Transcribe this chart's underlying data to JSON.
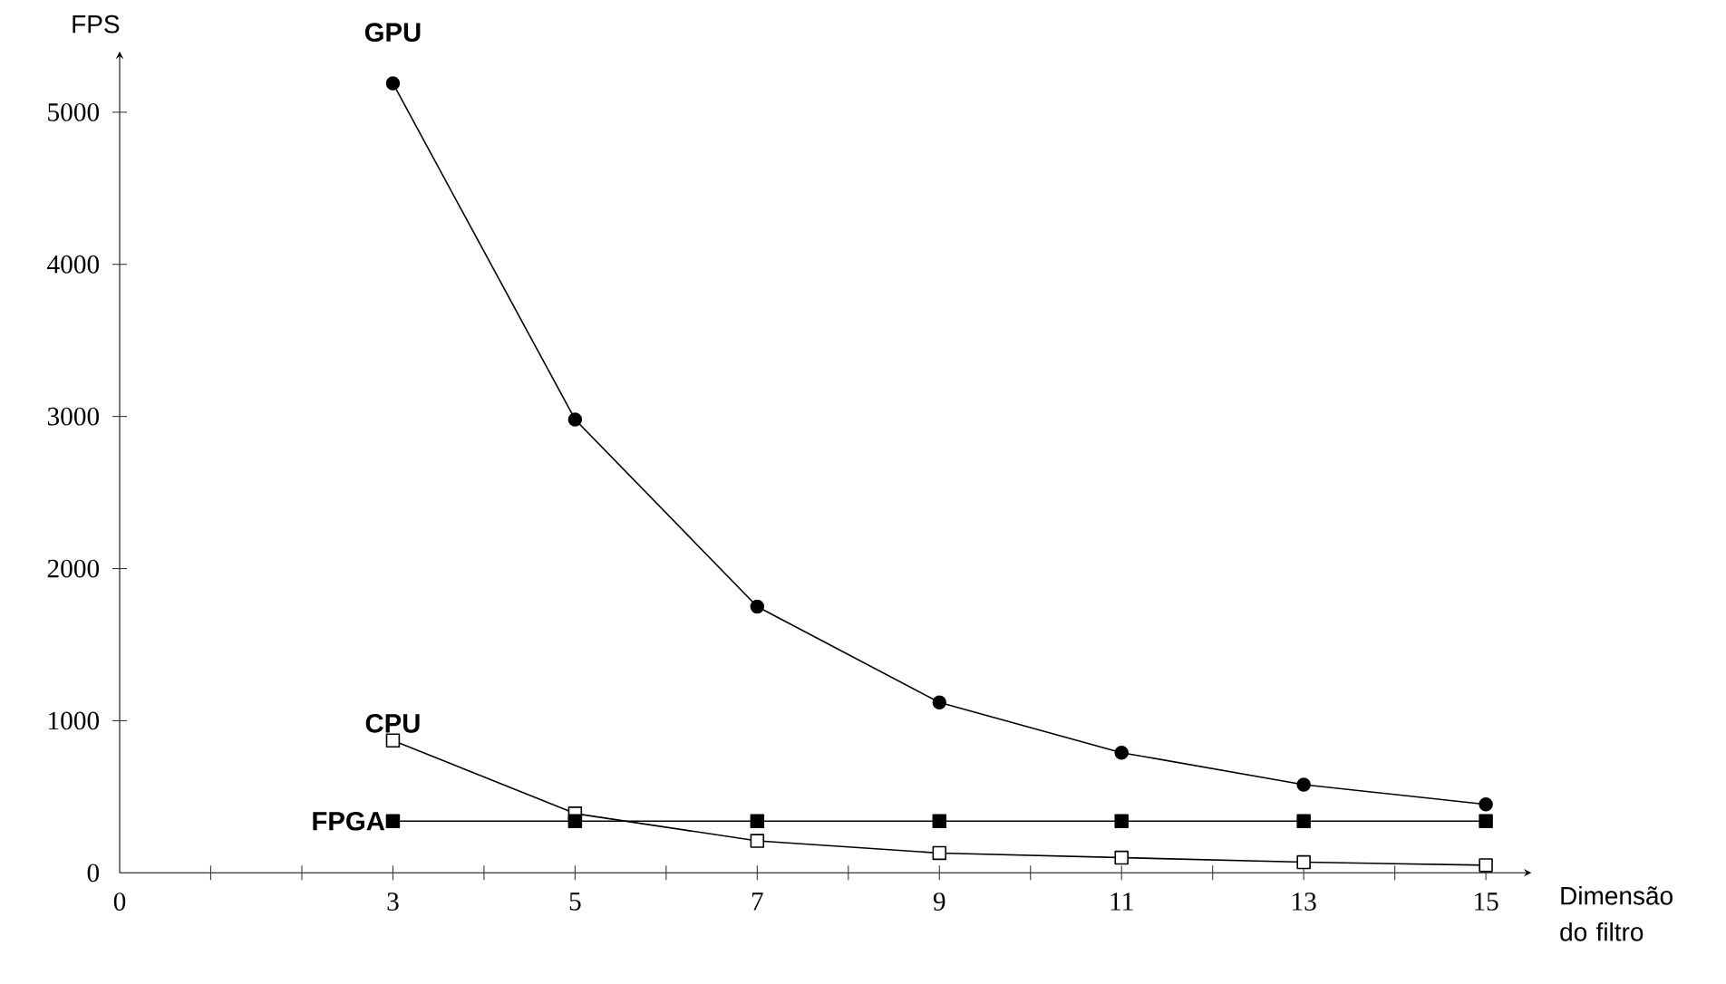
{
  "chart_data": {
    "type": "line",
    "xlabel": "Dimensão do filtro",
    "ylabel": "FPS",
    "x": [
      3,
      5,
      7,
      9,
      11,
      13,
      15
    ],
    "xlim": [
      0,
      15.5
    ],
    "ylim": [
      0,
      5400
    ],
    "xticks": [
      0,
      {
        "value": 1,
        "label": null
      },
      {
        "value": 2,
        "label": null
      },
      3,
      {
        "value": 4,
        "label": null
      },
      5,
      {
        "value": 6,
        "label": null
      },
      7,
      {
        "value": 8,
        "label": null
      },
      9,
      {
        "value": 10,
        "label": null
      },
      11,
      {
        "value": 12,
        "label": null
      },
      13,
      {
        "value": 14,
        "label": null
      },
      15
    ],
    "yticks": [
      0,
      1000,
      2000,
      3000,
      4000,
      5000
    ],
    "line_style": "solid",
    "series": [
      {
        "name": "GPU",
        "color": "#000000",
        "marker": "circle",
        "values": [
          5190,
          2980,
          1750,
          1120,
          790,
          580,
          450
        ]
      },
      {
        "name": "CPU",
        "color": "#000000",
        "marker": "square",
        "values": [
          870,
          390,
          210,
          130,
          100,
          70,
          50
        ]
      },
      {
        "name": "FPGA",
        "color": "#000000",
        "marker": "square",
        "values": [
          340,
          340,
          340,
          340,
          340,
          340,
          340
        ]
      }
    ]
  }
}
